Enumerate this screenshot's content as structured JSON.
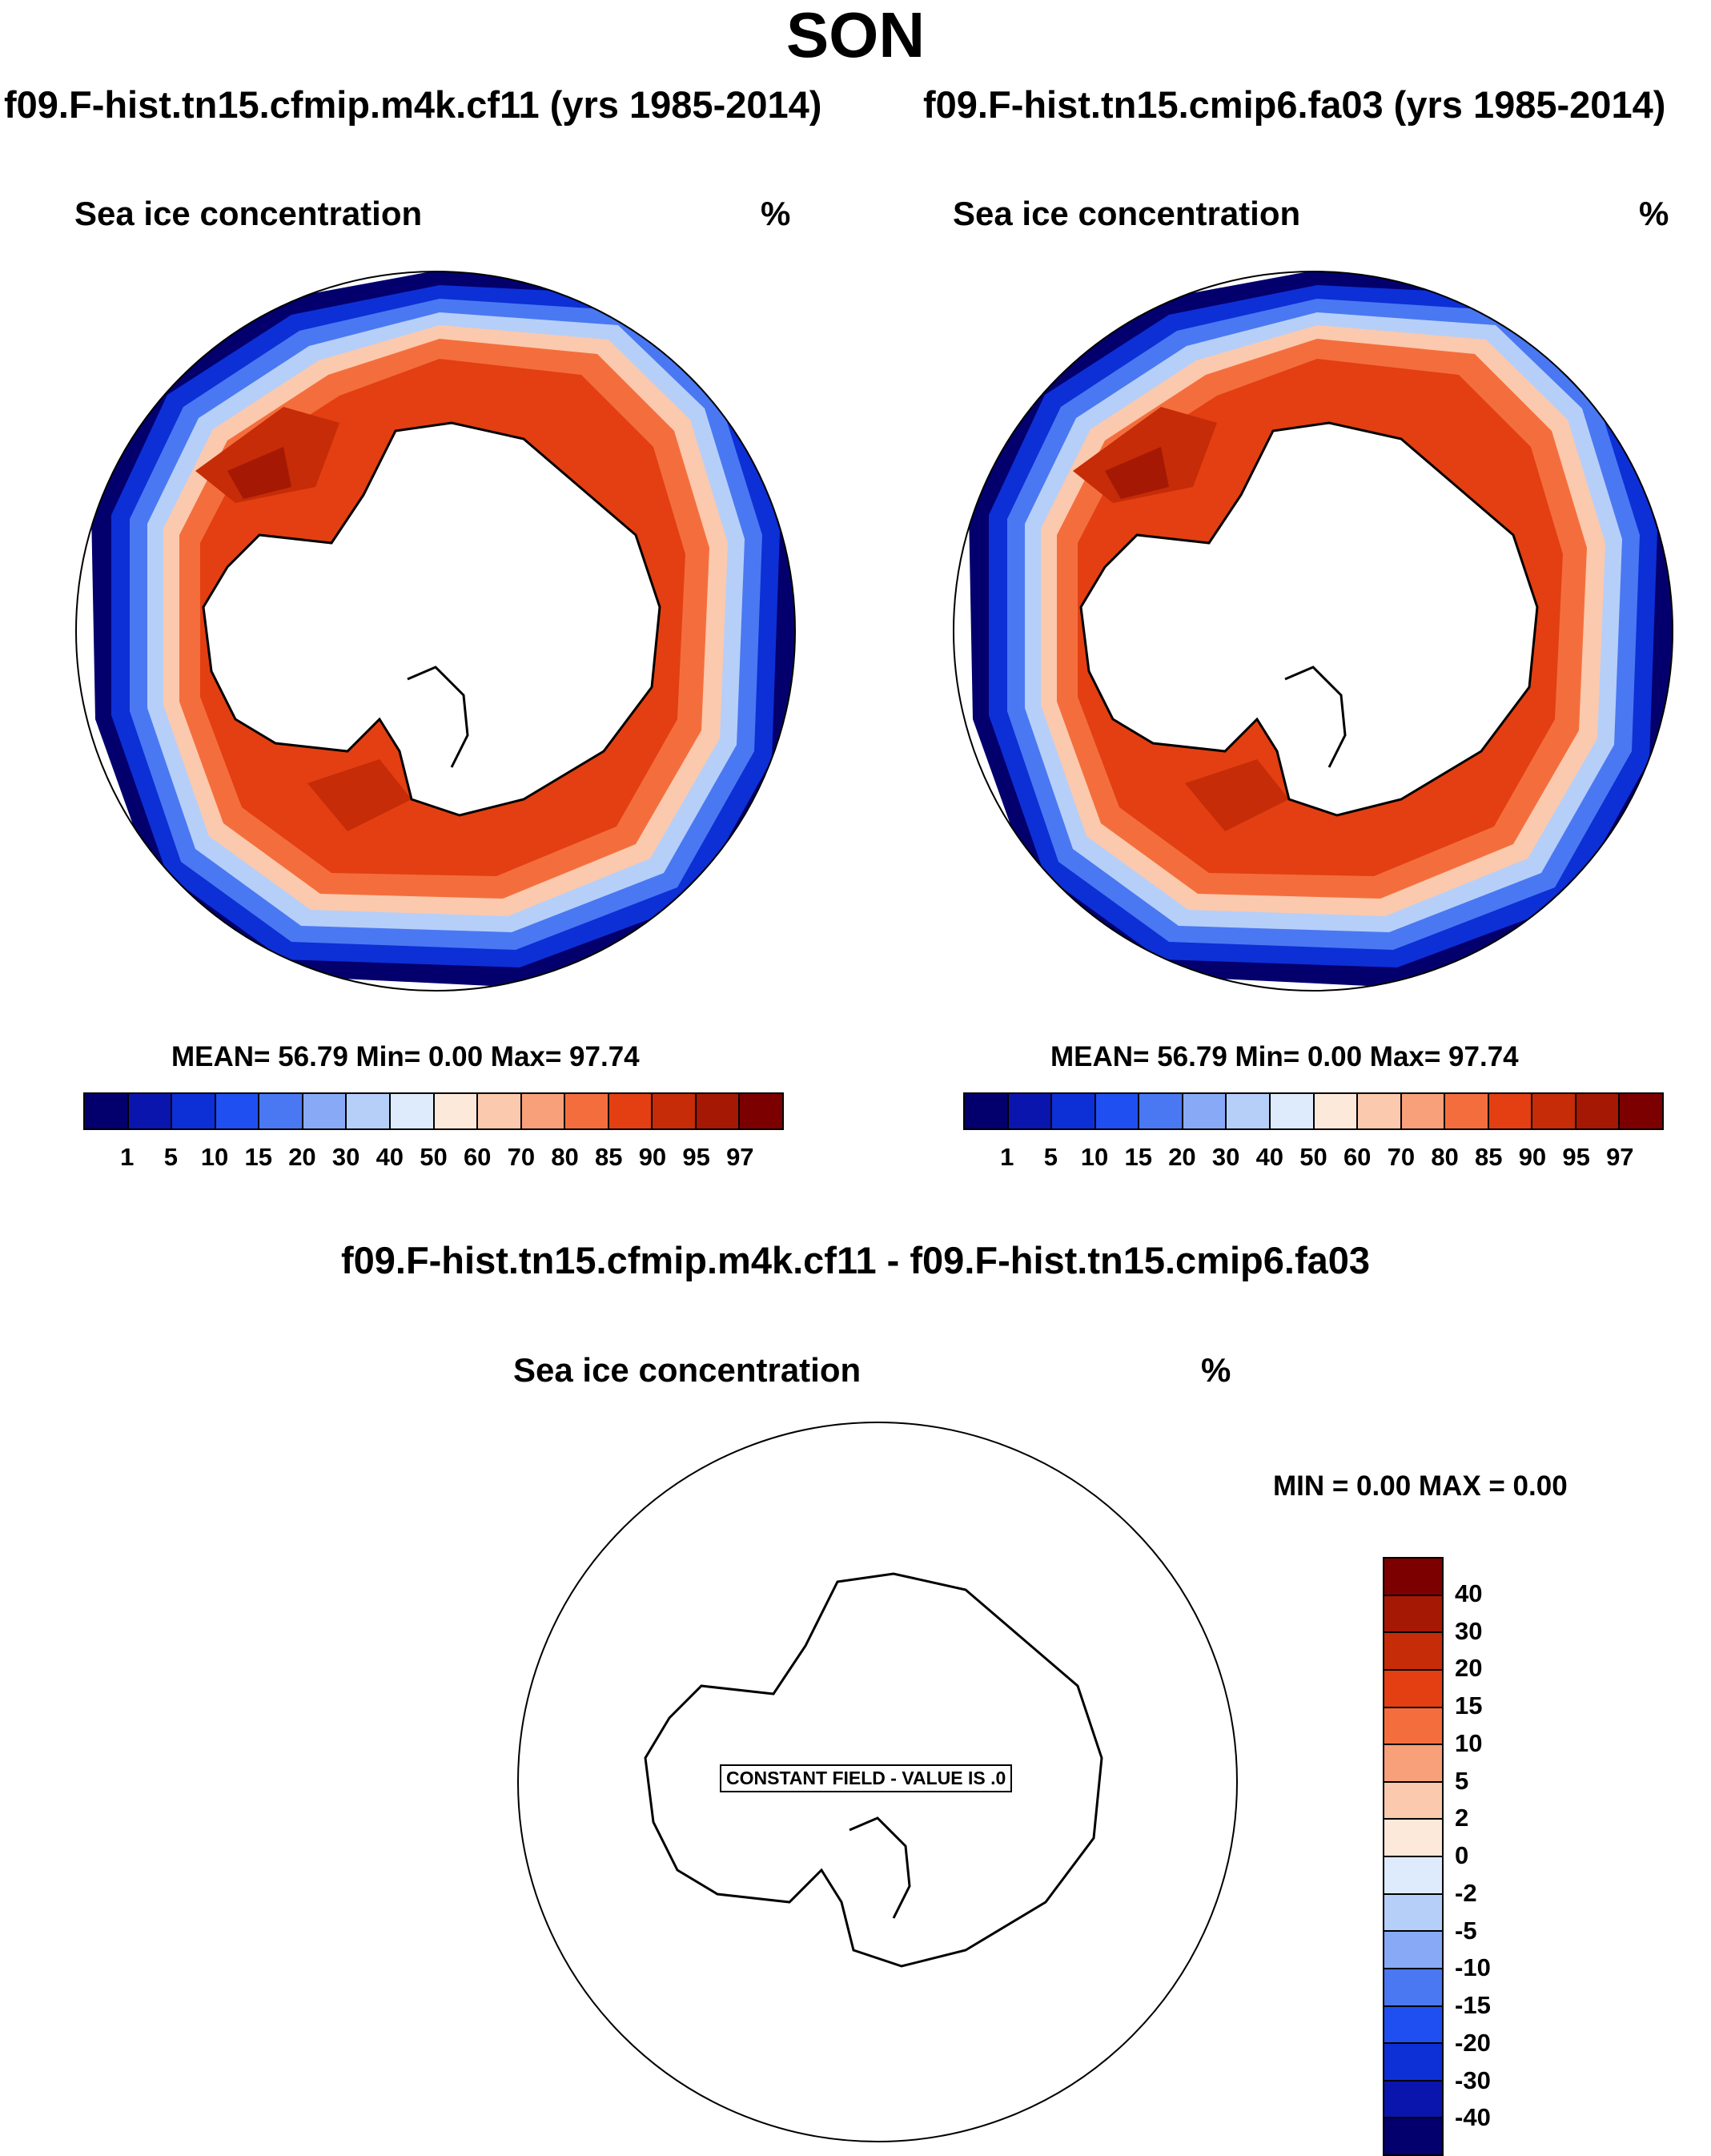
{
  "figure": {
    "season": "SON",
    "difference_title": "f09.F-hist.tn15.cfmip.m4k.cf11 - f09.F-hist.tn15.cmip6.fa03"
  },
  "panels": [
    {
      "run_title": "f09.F-hist.tn15.cfmip.m4k.cf11 (yrs 1985-2014)",
      "variable": "Sea ice concentration",
      "units": "%",
      "stats_text": "MEAN=  56.79  Min=    0.00  Max=  97.74"
    },
    {
      "run_title": "f09.F-hist.tn15.cmip6.fa03 (yrs 1985-2014)",
      "variable": "Sea ice concentration",
      "units": "%",
      "stats_text": "MEAN=  56.79  Min=    0.00  Max=  97.74"
    }
  ],
  "diff_panel": {
    "variable": "Sea ice concentration",
    "units": "%",
    "minmax_text": "MIN =    0.00 MAX =    0.00",
    "constant_field_text": "CONSTANT FIELD - VALUE IS .0"
  },
  "chart_data": [
    {
      "type": "heatmap",
      "title": "f09.F-hist.tn15.cfmip.m4k.cf11 (yrs 1985-2014)",
      "variable": "Sea ice concentration",
      "units": "%",
      "mean": 56.79,
      "min": 0.0,
      "max": 97.74,
      "levels": [
        1,
        5,
        10,
        15,
        20,
        30,
        40,
        50,
        60,
        70,
        80,
        85,
        90,
        95,
        97
      ],
      "colors": [
        "#03006e",
        "#0a15ad",
        "#0d2fd6",
        "#1f4ff0",
        "#4a78f2",
        "#88aaf6",
        "#b6cff9",
        "#ddebfc",
        "#fde9da",
        "#fbc9ad",
        "#f8a07a",
        "#f46e3d",
        "#e33f12",
        "#c52c07",
        "#a51804",
        "#7c0000"
      ]
    },
    {
      "type": "heatmap",
      "title": "f09.F-hist.tn15.cmip6.fa03 (yrs 1985-2014)",
      "variable": "Sea ice concentration",
      "units": "%",
      "mean": 56.79,
      "min": 0.0,
      "max": 97.74,
      "levels": [
        1,
        5,
        10,
        15,
        20,
        30,
        40,
        50,
        60,
        70,
        80,
        85,
        90,
        95,
        97
      ],
      "colors": [
        "#03006e",
        "#0a15ad",
        "#0d2fd6",
        "#1f4ff0",
        "#4a78f2",
        "#88aaf6",
        "#b6cff9",
        "#ddebfc",
        "#fde9da",
        "#fbc9ad",
        "#f8a07a",
        "#f46e3d",
        "#e33f12",
        "#c52c07",
        "#a51804",
        "#7c0000"
      ]
    },
    {
      "type": "heatmap",
      "title": "f09.F-hist.tn15.cfmip.m4k.cf11 - f09.F-hist.tn15.cmip6.fa03",
      "variable": "Sea ice concentration",
      "units": "%",
      "min": 0.0,
      "max": 0.0,
      "constant_value": 0,
      "levels": [
        40,
        30,
        20,
        15,
        10,
        5,
        2,
        0,
        -2,
        -5,
        -10,
        -15,
        -20,
        -30,
        -40
      ],
      "colors": [
        "#7c0000",
        "#a51804",
        "#c52c07",
        "#e33f12",
        "#f46e3d",
        "#f8a07a",
        "#fbc9ad",
        "#fde9da",
        "#ddebfc",
        "#b6cff9",
        "#88aaf6",
        "#4a78f2",
        "#1f4ff0",
        "#0d2fd6",
        "#0a15ad",
        "#03006e"
      ]
    }
  ]
}
